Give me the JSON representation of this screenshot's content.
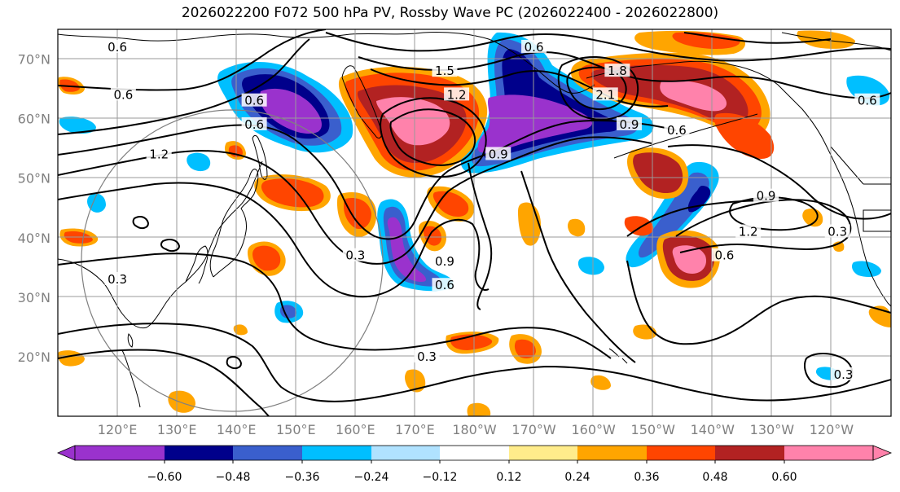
{
  "title": "2026022200 F072 500 hPa PV, Rossby Wave PC (2026022400 - 2026022800)",
  "lat_labels": [
    "70°N",
    "60°N",
    "50°N",
    "40°N",
    "30°N",
    "20°N"
  ],
  "lat_values": [
    70,
    60,
    50,
    40,
    30,
    20
  ],
  "lon_labels": [
    "120°E",
    "130°E",
    "140°E",
    "150°E",
    "160°E",
    "170°E",
    "180°W",
    "170°W",
    "160°W",
    "150°W",
    "140°W",
    "130°W",
    "120°W"
  ],
  "lon_values": [
    120,
    130,
    140,
    150,
    160,
    170,
    180,
    190,
    200,
    210,
    220,
    230,
    240
  ],
  "map_extent": {
    "lon_min": 110,
    "lon_max": 250,
    "lat_min": 10,
    "lat_max": 75
  },
  "colorbar": {
    "colors": [
      "#9a32cd",
      "#00008b",
      "#3a5fcd",
      "#00bfff",
      "#b0e2ff",
      "#ffffff",
      "#ffec8b",
      "#ffa500",
      "#ff4500",
      "#b22222",
      "#ff82ab"
    ],
    "tick_labels": [
      "−0.60",
      "−0.48",
      "−0.36",
      "−0.24",
      "−0.12",
      "0.12",
      "0.24",
      "0.36",
      "0.48",
      "0.60"
    ],
    "tick_values": [
      -0.6,
      -0.48,
      -0.36,
      -0.24,
      -0.12,
      0.12,
      0.24,
      0.36,
      0.48,
      0.6
    ]
  },
  "contour_labels": [
    {
      "text": "0.6",
      "lon": 120,
      "lat": 72
    },
    {
      "text": "0.6",
      "lon": 121,
      "lat": 64
    },
    {
      "text": "1.2",
      "lon": 127,
      "lat": 54
    },
    {
      "text": "0.6",
      "lon": 143,
      "lat": 63
    },
    {
      "text": "0.6",
      "lon": 143,
      "lat": 59
    },
    {
      "text": "0.3",
      "lon": 120,
      "lat": 33
    },
    {
      "text": "0.3",
      "lon": 160,
      "lat": 37
    },
    {
      "text": "0.9",
      "lon": 175,
      "lat": 36
    },
    {
      "text": "0.6",
      "lon": 175,
      "lat": 32
    },
    {
      "text": "0.6",
      "lon": 190,
      "lat": 72
    },
    {
      "text": "1.5",
      "lon": 175,
      "lat": 68
    },
    {
      "text": "1.2",
      "lon": 177,
      "lat": 64
    },
    {
      "text": "0.9",
      "lon": 184,
      "lat": 54
    },
    {
      "text": "1.8",
      "lon": 204,
      "lat": 68
    },
    {
      "text": "2.1",
      "lon": 202,
      "lat": 64
    },
    {
      "text": "0.9",
      "lon": 206,
      "lat": 59
    },
    {
      "text": "0.6",
      "lon": 214,
      "lat": 58
    },
    {
      "text": "0.9",
      "lon": 229,
      "lat": 47
    },
    {
      "text": "1.2",
      "lon": 226,
      "lat": 41
    },
    {
      "text": "0.6",
      "lon": 222,
      "lat": 37
    },
    {
      "text": "0.3",
      "lon": 241,
      "lat": 41
    },
    {
      "text": "0.6",
      "lon": 246,
      "lat": 63
    },
    {
      "text": "0.3",
      "lon": 172,
      "lat": 20
    },
    {
      "text": "0.3",
      "lon": 242,
      "lat": 17
    }
  ]
}
